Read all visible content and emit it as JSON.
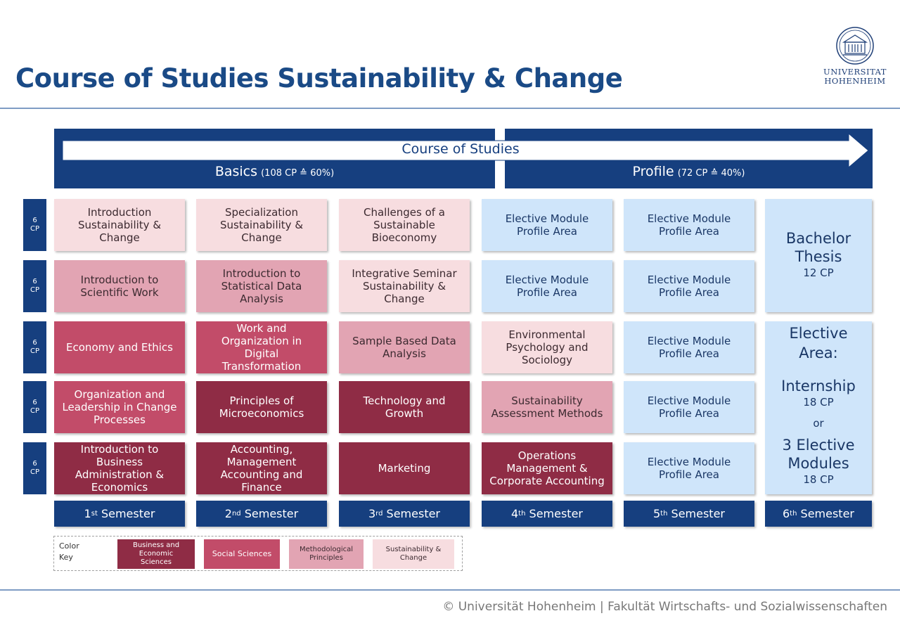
{
  "page": {
    "title": "Course of Studies Sustainability & Change"
  },
  "logo": {
    "line1": "UNIVERSITAT",
    "line2": "HOHENHEIM"
  },
  "header": {
    "course_label": "Course of Studies",
    "basics_label": "Basics",
    "basics_detail": "(108 CP ≙ 60%)",
    "profile_label": "Profile",
    "profile_detail": "(72 CP ≙ 40%)"
  },
  "cp_labels": [
    {
      "num": "6",
      "unit": "CP"
    },
    {
      "num": "6",
      "unit": "CP"
    },
    {
      "num": "6",
      "unit": "CP"
    },
    {
      "num": "6",
      "unit": "CP"
    },
    {
      "num": "6",
      "unit": "CP"
    }
  ],
  "modules": [
    [
      "Introduction\nSustainability &\nChange",
      "Introduction to\nScientific Work",
      "Economy and Ethics",
      "Organization and\nLeadership in Change\nProcesses",
      "Introduction to\nBusiness\nAdministration &\nEconomics"
    ],
    [
      "Specialization\nSustainability &\nChange",
      "Introduction to\nStatistical Data\nAnalysis",
      "Work and\nOrganization in\nDigital\nTransformation",
      "Principles of\nMicroeconomics",
      "Accounting,\nManagement\nAccounting and\nFinance"
    ],
    [
      "Challenges of a\nSustainable\nBioeconomy",
      "Integrative Seminar\nSustainability &\nChange",
      "Sample Based Data\nAnalysis",
      "Technology and\nGrowth",
      "Marketing"
    ],
    [
      "Elective Module\nProfile Area",
      "Elective Module\nProfile Area",
      "Environmental\nPsychology and\nSociology",
      "Sustainability\nAssessment Methods",
      "Operations\nManagement &\nCorporate Accounting"
    ],
    [
      "Elective Module\nProfile Area",
      "Elective Module\nProfile Area",
      "Elective Module\nProfile Area",
      "Elective Module\nProfile Area",
      "Elective Module\nProfile Area"
    ]
  ],
  "sixth": {
    "thesis_title": "Bachelor\nThesis",
    "thesis_cp": "12 CP",
    "elective_title": "Elective\nArea:",
    "internship": "Internship",
    "internship_cp": "18 CP",
    "or": "or",
    "modules_title": "3 Elective\nModules",
    "modules_cp": "18 CP"
  },
  "semesters": [
    {
      "num": "1",
      "sup": "st",
      "label": "Semester"
    },
    {
      "num": "2",
      "sup": "nd",
      "label": "Semester"
    },
    {
      "num": "3",
      "sup": "rd",
      "label": "Semester"
    },
    {
      "num": "4",
      "sup": "th",
      "label": "Semester"
    },
    {
      "num": "5",
      "sup": "th",
      "label": "Semester"
    },
    {
      "num": "6",
      "sup": "th",
      "label": "Semester"
    }
  ],
  "color_key": {
    "label": "Color\nKey",
    "items": [
      "Business and\nEconomic\nSciences",
      "Social Sciences",
      "Methodological\nPrinciples",
      "Sustainability &\nChange"
    ]
  },
  "colors": {
    "business": "#8f2c45",
    "social": "#c24c69",
    "methodological": "#e2a4b3",
    "sustainability": "#f7dde0",
    "profile": "#cfe5fa",
    "navy": "#163f7f"
  },
  "footer": "© Universität Hohenheim | Fakultät Wirtschafts- und Sozialwissenschaften"
}
